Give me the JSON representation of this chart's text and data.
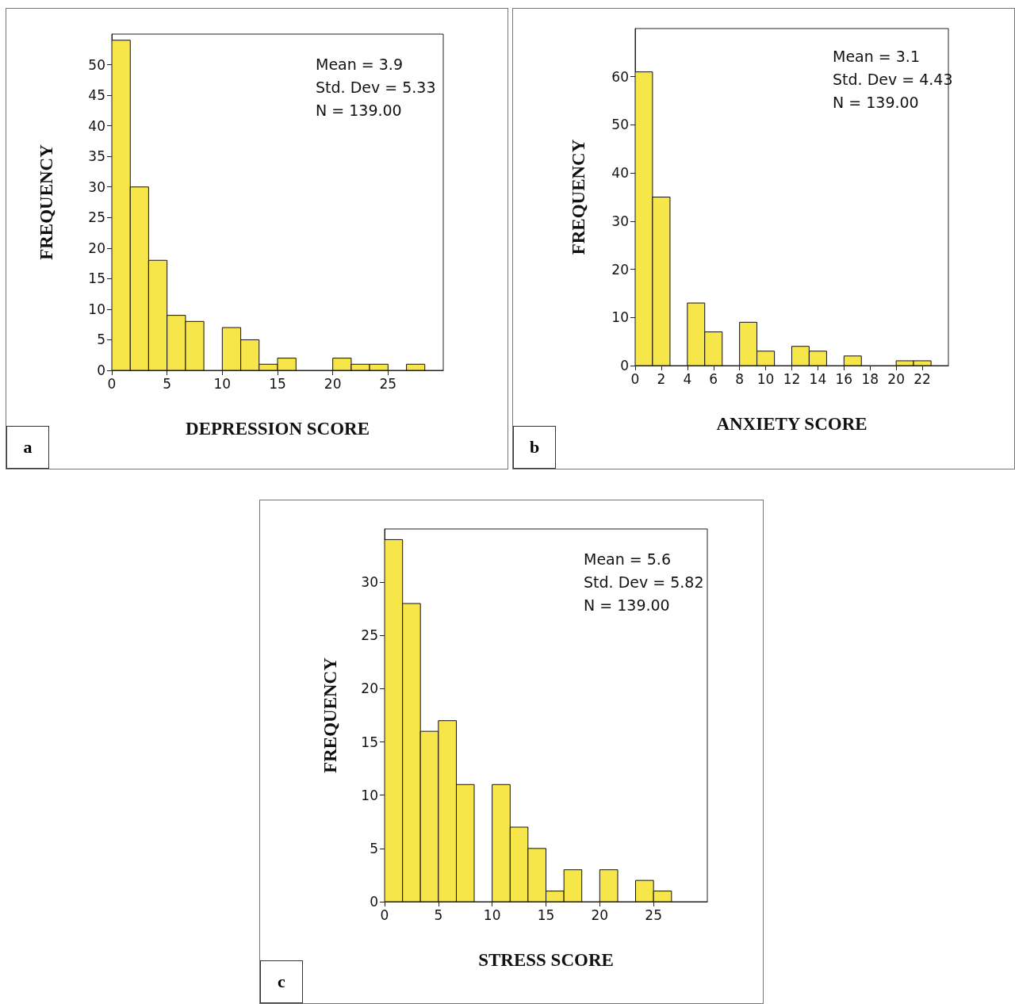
{
  "chart_data": [
    {
      "type": "histogram",
      "xlabel": "DEPRESSION SCORE",
      "ylabel": "FREQUENCY",
      "color": "#f7e64a",
      "bins": [
        0,
        1.67,
        3.33,
        5,
        6.67,
        8.33,
        10,
        11.67,
        13.33,
        15,
        16.67,
        18.33,
        20,
        21.67,
        23.33,
        25,
        26.67,
        28.33
      ],
      "values": [
        54,
        30,
        18,
        9,
        8,
        0,
        7,
        5,
        1,
        2,
        0,
        0,
        2,
        1,
        1,
        0,
        1
      ],
      "xlim": [
        0,
        30
      ],
      "xticks": [
        0,
        5,
        10,
        15,
        20,
        25
      ],
      "ylim": [
        0,
        55
      ],
      "yticks": [
        0,
        5,
        10,
        15,
        20,
        25,
        30,
        35,
        40,
        45,
        50
      ],
      "annotations": [
        "Mean = 3.9",
        "Std. Dev = 5.33",
        "N = 139.00",
        "a"
      ]
    },
    {
      "type": "histogram",
      "xlabel": "ANXIETY SCORE",
      "ylabel": "FREQUENCY",
      "color": "#f7e64a",
      "bins": [
        0,
        1.33,
        2.67,
        4,
        5.33,
        6.67,
        8,
        9.33,
        10.67,
        12,
        13.33,
        14.67,
        16,
        17.33,
        18.67,
        20,
        21.33,
        22.67
      ],
      "values": [
        61,
        35,
        0,
        13,
        7,
        0,
        9,
        3,
        0,
        4,
        3,
        0,
        2,
        0,
        0,
        1,
        1
      ],
      "xlim": [
        0,
        24
      ],
      "xticks": [
        0,
        2,
        4,
        6,
        8,
        10,
        12,
        14,
        16,
        18,
        20,
        22
      ],
      "ylim": [
        0,
        70
      ],
      "yticks": [
        0,
        10,
        20,
        30,
        40,
        50,
        60
      ],
      "annotations": [
        "Mean = 3.1",
        "Std. Dev = 4.43",
        "N = 139.00",
        "b"
      ]
    },
    {
      "type": "histogram",
      "xlabel": "STRESS SCORE",
      "ylabel": "FREQUENCY",
      "color": "#f7e64a",
      "bins": [
        0,
        1.67,
        3.33,
        5,
        6.67,
        8.33,
        10,
        11.67,
        13.33,
        15,
        16.67,
        18.33,
        20,
        21.67,
        23.33,
        25,
        26.67
      ],
      "values": [
        34,
        28,
        16,
        17,
        11,
        0,
        11,
        7,
        5,
        1,
        3,
        0,
        3,
        0,
        2,
        1
      ],
      "xlim": [
        0,
        30
      ],
      "xticks": [
        0,
        5,
        10,
        15,
        20,
        25
      ],
      "ylim": [
        0,
        35
      ],
      "yticks": [
        0,
        5,
        10,
        15,
        20,
        25,
        30
      ],
      "annotations": [
        "Mean = 5.6",
        "Std. Dev = 5.82",
        "N = 139.00",
        "c"
      ]
    }
  ]
}
